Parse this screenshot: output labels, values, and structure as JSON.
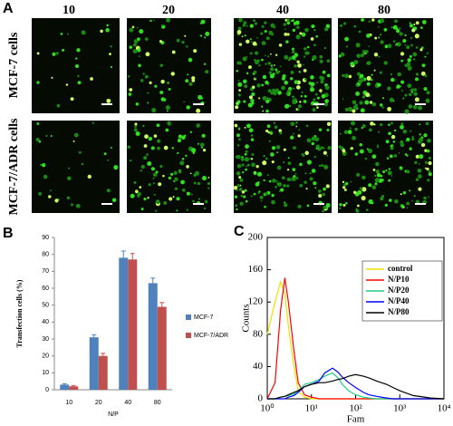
{
  "figure": {
    "panel_labels": [
      "A",
      "B",
      "C"
    ],
    "columns": [
      "10",
      "20",
      "40",
      "80"
    ],
    "rows": [
      "MCF-7 cells",
      "MCF-7/ADR cells"
    ]
  },
  "chart_data": [
    {
      "type": "bar",
      "ylabel": "Transfection cells (%)",
      "xlabel": "N/P",
      "categories": [
        "10",
        "20",
        "40",
        "80"
      ],
      "series": [
        {
          "name": "MCF-7",
          "color": "#4f81bd",
          "values": [
            3,
            31,
            78,
            63
          ],
          "errors": [
            0.5,
            1.5,
            4,
            3
          ]
        },
        {
          "name": "MCF-7/ADR",
          "color": "#c0504d",
          "values": [
            2,
            20,
            77,
            49
          ],
          "errors": [
            0.5,
            1.5,
            3.5,
            2.5
          ]
        }
      ],
      "ylim": [
        0,
        90
      ],
      "yticks": [
        0,
        10,
        20,
        30,
        40,
        50,
        60,
        70,
        80,
        90
      ],
      "grid": false
    },
    {
      "type": "line",
      "ylabel": "Counts",
      "xlabel": "Fam",
      "xscale": "log",
      "x": [
        1,
        1.5,
        2,
        2.5,
        3,
        4,
        5,
        7,
        10,
        15,
        20,
        30,
        40,
        50,
        70,
        100,
        150,
        200,
        300,
        500,
        700,
        1000,
        2000,
        5000,
        10000
      ],
      "series": [
        {
          "name": "control",
          "color": "#f0e000",
          "values": [
            80,
            120,
            145,
            130,
            90,
            40,
            10,
            2,
            0,
            0,
            0,
            0,
            0,
            0,
            0,
            0,
            0,
            0,
            0,
            0,
            0,
            0,
            0,
            0,
            0
          ]
        },
        {
          "name": "N/P10",
          "color": "#ff0000",
          "values": [
            0,
            20,
            110,
            150,
            120,
            60,
            20,
            5,
            2,
            0,
            0,
            0,
            0,
            0,
            0,
            0,
            0,
            0,
            0,
            0,
            0,
            0,
            0,
            0,
            0
          ]
        },
        {
          "name": "N/P20",
          "color": "#22cc88",
          "values": [
            0,
            0,
            2,
            3,
            4,
            6,
            10,
            18,
            20,
            24,
            28,
            32,
            26,
            18,
            10,
            5,
            2,
            1,
            0,
            0,
            0,
            0,
            0,
            0,
            0
          ]
        },
        {
          "name": "N/P40",
          "color": "#0000ff",
          "values": [
            0,
            0,
            0,
            0,
            2,
            4,
            8,
            15,
            18,
            22,
            32,
            38,
            33,
            27,
            20,
            14,
            8,
            5,
            3,
            1,
            0,
            0,
            0,
            0,
            0
          ]
        },
        {
          "name": "N/P80",
          "color": "#000000",
          "values": [
            0,
            0,
            2,
            3,
            5,
            8,
            10,
            15,
            18,
            20,
            20,
            22,
            24,
            25,
            28,
            30,
            28,
            26,
            22,
            18,
            14,
            10,
            4,
            1,
            0
          ]
        }
      ],
      "xlim": [
        1,
        10000
      ],
      "xticks": [
        {
          "value": 1,
          "label": "10⁰"
        },
        {
          "value": 10,
          "label": "10¹"
        },
        {
          "value": 100,
          "label": "10²"
        },
        {
          "value": 1000,
          "label": "10³"
        },
        {
          "value": 10000,
          "label": "10⁴"
        }
      ],
      "ylim": [
        0,
        200
      ],
      "yticks": [
        0,
        40,
        80,
        120,
        160,
        200
      ],
      "legend": "upper right"
    }
  ]
}
